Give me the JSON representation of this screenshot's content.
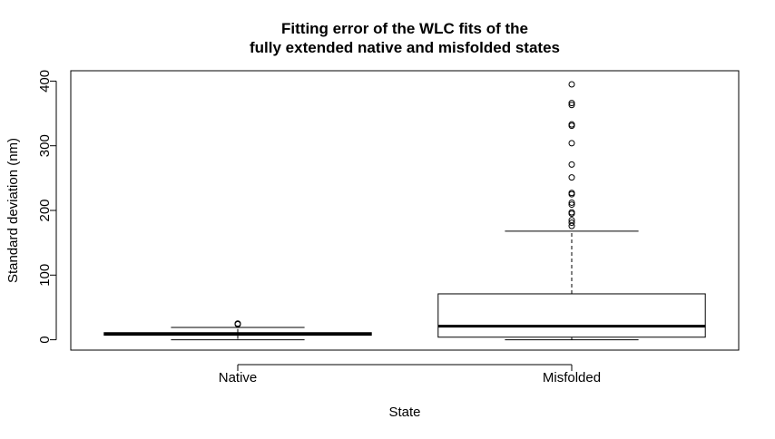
{
  "chart_data": {
    "type": "box",
    "title_line1": "Fitting error of the WLC fits of the",
    "title_line2": "fully extended native and misfolded states",
    "xlabel": "State",
    "ylabel": "Standard deviation (nm)",
    "ylim": [
      -16,
      416
    ],
    "yticks": [
      0,
      100,
      200,
      300,
      400
    ],
    "categories": [
      "Native",
      "Misfolded"
    ],
    "boxes": [
      {
        "name": "Native",
        "whisker_low": 0,
        "q1": 7,
        "median": 9,
        "q3": 11,
        "whisker_high": 19,
        "outliers": [
          24,
          25
        ]
      },
      {
        "name": "Misfolded",
        "whisker_low": 0,
        "q1": 4,
        "median": 21,
        "q3": 71,
        "whisker_high": 168,
        "outliers": [
          176,
          181,
          185,
          195,
          197,
          209,
          212,
          225,
          227,
          251,
          271,
          304,
          331,
          333,
          363,
          366,
          395
        ]
      }
    ],
    "grid": false,
    "legend": "none"
  }
}
